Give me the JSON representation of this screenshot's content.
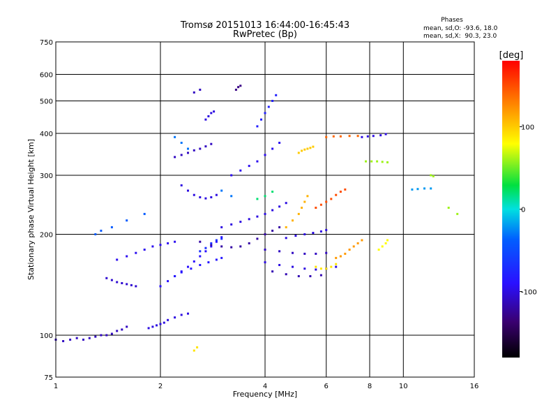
{
  "chart_data": {
    "type": "scatter",
    "title": "Tromsø 20151013 16:44:00-16:45:43",
    "subtitle": "RwPretec (Bp)",
    "xlabel": "Frequency [MHz]",
    "ylabel": "Stationary phase Virtual Height [km]",
    "x_scale": "log",
    "y_scale": "log",
    "xlim": [
      1,
      16
    ],
    "ylim": [
      75,
      750
    ],
    "x_ticks": [
      1,
      2,
      4,
      6,
      8,
      10,
      16
    ],
    "y_ticks": [
      75,
      100,
      200,
      300,
      400,
      500,
      600,
      750
    ],
    "grid": true,
    "phases_box": {
      "title": "Phases",
      "line_o": "mean, sd,O: -93.6, 18.0",
      "line_x": "mean, sd,X:  90.3, 23.0"
    },
    "colorbar": {
      "label": "[deg]",
      "range": [
        -180,
        180
      ],
      "ticks": [
        100,
        0,
        -100
      ]
    },
    "series": [
      {
        "phase": -110,
        "points": [
          [
            1.0,
            97
          ],
          [
            1.05,
            96
          ],
          [
            1.1,
            97
          ],
          [
            1.15,
            98
          ],
          [
            1.2,
            97
          ],
          [
            1.25,
            98
          ],
          [
            1.3,
            99
          ],
          [
            1.35,
            100
          ],
          [
            1.4,
            100
          ],
          [
            1.45,
            101
          ],
          [
            1.5,
            103
          ],
          [
            1.55,
            104
          ],
          [
            1.6,
            106
          ]
        ]
      },
      {
        "phase": -100,
        "points": [
          [
            1.85,
            105
          ],
          [
            1.9,
            106
          ],
          [
            1.95,
            107
          ],
          [
            2.0,
            108
          ],
          [
            2.05,
            109
          ],
          [
            2.1,
            111
          ],
          [
            2.2,
            113
          ],
          [
            2.3,
            115
          ],
          [
            2.4,
            116
          ]
        ]
      },
      {
        "phase": -105,
        "points": [
          [
            1.4,
            148
          ],
          [
            1.45,
            146
          ],
          [
            1.5,
            144
          ],
          [
            1.55,
            143
          ],
          [
            1.6,
            142
          ],
          [
            1.65,
            141
          ],
          [
            1.7,
            140
          ]
        ]
      },
      {
        "phase": -95,
        "points": [
          [
            1.5,
            168
          ],
          [
            1.6,
            172
          ],
          [
            1.7,
            176
          ],
          [
            1.8,
            180
          ],
          [
            1.9,
            184
          ],
          [
            2.0,
            186
          ],
          [
            2.1,
            188
          ],
          [
            2.2,
            190
          ]
        ]
      },
      {
        "phase": -90,
        "points": [
          [
            2.0,
            140
          ],
          [
            2.1,
            145
          ],
          [
            2.2,
            150
          ],
          [
            2.3,
            155
          ],
          [
            2.4,
            160
          ],
          [
            2.5,
            166
          ],
          [
            2.6,
            172
          ],
          [
            2.7,
            178
          ],
          [
            2.8,
            184
          ],
          [
            2.9,
            190
          ],
          [
            3.0,
            196
          ]
        ]
      },
      {
        "phase": -85,
        "points": [
          [
            2.2,
            150
          ],
          [
            2.3,
            154
          ],
          [
            2.45,
            158
          ],
          [
            2.6,
            162
          ],
          [
            2.75,
            165
          ],
          [
            2.9,
            168
          ],
          [
            3.0,
            170
          ]
        ]
      },
      {
        "phase": -120,
        "points": [
          [
            2.6,
            190
          ],
          [
            2.8,
            186
          ],
          [
            3.0,
            184
          ],
          [
            3.2,
            183
          ],
          [
            3.4,
            184
          ],
          [
            3.6,
            188
          ],
          [
            3.8,
            194
          ],
          [
            4.0,
            200
          ],
          [
            4.2,
            205
          ],
          [
            4.4,
            210
          ]
        ]
      },
      {
        "phase": -70,
        "points": [
          [
            2.6,
            178
          ],
          [
            2.7,
            182
          ],
          [
            2.8,
            188
          ],
          [
            2.9,
            192
          ],
          [
            3.0,
            194
          ]
        ]
      },
      {
        "phase": -100,
        "points": [
          [
            3.0,
            210
          ],
          [
            3.2,
            214
          ],
          [
            3.4,
            218
          ],
          [
            3.6,
            222
          ],
          [
            3.8,
            226
          ],
          [
            4.0,
            230
          ],
          [
            4.2,
            236
          ],
          [
            4.4,
            242
          ],
          [
            4.6,
            248
          ]
        ]
      },
      {
        "phase": -110,
        "points": [
          [
            2.2,
            340
          ],
          [
            2.3,
            345
          ],
          [
            2.4,
            350
          ],
          [
            2.5,
            356
          ],
          [
            2.6,
            360
          ],
          [
            2.7,
            366
          ],
          [
            2.8,
            372
          ]
        ]
      },
      {
        "phase": -100,
        "points": [
          [
            2.3,
            280
          ],
          [
            2.4,
            270
          ],
          [
            2.5,
            262
          ],
          [
            2.6,
            258
          ],
          [
            2.7,
            256
          ],
          [
            2.8,
            258
          ],
          [
            2.9,
            262
          ]
        ]
      },
      {
        "phase": -95,
        "points": [
          [
            3.2,
            300
          ],
          [
            3.4,
            310
          ],
          [
            3.6,
            320
          ],
          [
            3.8,
            330
          ],
          [
            4.0,
            345
          ],
          [
            4.2,
            360
          ],
          [
            4.4,
            375
          ]
        ]
      },
      {
        "phase": -80,
        "points": [
          [
            3.8,
            420
          ],
          [
            3.9,
            440
          ],
          [
            4.0,
            460
          ],
          [
            4.1,
            480
          ],
          [
            4.2,
            500
          ],
          [
            4.3,
            520
          ]
        ]
      },
      {
        "phase": -110,
        "points": [
          [
            4.0,
            180
          ],
          [
            4.4,
            178
          ],
          [
            4.8,
            176
          ],
          [
            5.2,
            175
          ],
          [
            5.6,
            175
          ],
          [
            6.0,
            176
          ]
        ]
      },
      {
        "phase": -100,
        "points": [
          [
            4.0,
            165
          ],
          [
            4.4,
            162
          ],
          [
            4.8,
            160
          ],
          [
            5.2,
            158
          ],
          [
            5.6,
            157
          ],
          [
            6.0,
            158
          ],
          [
            6.4,
            160
          ]
        ]
      },
      {
        "phase": -115,
        "points": [
          [
            4.2,
            155
          ],
          [
            4.6,
            152
          ],
          [
            5.0,
            150
          ],
          [
            5.4,
            150
          ],
          [
            5.8,
            151
          ]
        ]
      },
      {
        "phase": -100,
        "points": [
          [
            4.6,
            195
          ],
          [
            4.9,
            198
          ],
          [
            5.2,
            200
          ],
          [
            5.5,
            202
          ],
          [
            5.8,
            204
          ],
          [
            6.0,
            206
          ]
        ]
      },
      {
        "phase": 110,
        "points": [
          [
            4.6,
            210
          ],
          [
            4.8,
            220
          ],
          [
            5.0,
            230
          ],
          [
            5.1,
            240
          ],
          [
            5.2,
            250
          ],
          [
            5.3,
            260
          ]
        ]
      },
      {
        "phase": 100,
        "points": [
          [
            5.0,
            350
          ],
          [
            5.1,
            355
          ],
          [
            5.2,
            358
          ],
          [
            5.3,
            360
          ],
          [
            5.4,
            362
          ],
          [
            5.5,
            365
          ]
        ]
      },
      {
        "phase": 150,
        "points": [
          [
            5.6,
            240
          ],
          [
            5.8,
            245
          ],
          [
            6.0,
            250
          ],
          [
            6.2,
            255
          ],
          [
            6.4,
            262
          ],
          [
            6.6,
            268
          ],
          [
            6.8,
            272
          ]
        ]
      },
      {
        "phase": 90,
        "points": [
          [
            5.6,
            160
          ],
          [
            5.8,
            158
          ],
          [
            6.0,
            158
          ],
          [
            6.2,
            160
          ],
          [
            6.4,
            163
          ]
        ]
      },
      {
        "phase": 120,
        "points": [
          [
            6.4,
            170
          ],
          [
            6.6,
            172
          ],
          [
            6.8,
            175
          ],
          [
            7.0,
            180
          ],
          [
            7.2,
            184
          ],
          [
            7.4,
            188
          ],
          [
            7.6,
            192
          ]
        ]
      },
      {
        "phase": 140,
        "points": [
          [
            6.0,
            390
          ],
          [
            6.3,
            392
          ],
          [
            6.6,
            392
          ],
          [
            7.0,
            393
          ],
          [
            7.4,
            393
          ]
        ]
      },
      {
        "phase": -100,
        "points": [
          [
            7.6,
            390
          ],
          [
            7.9,
            392
          ],
          [
            8.2,
            393
          ],
          [
            8.6,
            395
          ],
          [
            8.9,
            398
          ]
        ]
      },
      {
        "phase": 60,
        "points": [
          [
            7.8,
            330
          ],
          [
            8.1,
            330
          ],
          [
            8.4,
            330
          ],
          [
            8.7,
            329
          ],
          [
            9.0,
            328
          ]
        ]
      },
      {
        "phase": 80,
        "points": [
          [
            8.5,
            180
          ],
          [
            8.7,
            184
          ],
          [
            8.9,
            188
          ],
          [
            9.0,
            192
          ]
        ]
      },
      {
        "phase": -20,
        "points": [
          [
            10.6,
            272
          ],
          [
            11.0,
            273
          ],
          [
            11.5,
            274
          ],
          [
            12.0,
            274
          ]
        ]
      },
      {
        "phase": -130,
        "points": [
          [
            3.3,
            540
          ],
          [
            3.35,
            550
          ],
          [
            3.4,
            555
          ]
        ]
      },
      {
        "phase": -100,
        "points": [
          [
            2.7,
            440
          ],
          [
            2.75,
            450
          ],
          [
            2.8,
            460
          ],
          [
            2.85,
            465
          ]
        ]
      },
      {
        "phase": -110,
        "points": [
          [
            2.5,
            530
          ],
          [
            2.6,
            540
          ]
        ]
      },
      {
        "phase": 90,
        "points": [
          [
            2.5,
            90
          ],
          [
            2.55,
            92
          ]
        ]
      },
      {
        "phase": -40,
        "points": [
          [
            1.3,
            200
          ],
          [
            1.35,
            205
          ],
          [
            1.45,
            210
          ],
          [
            1.6,
            220
          ],
          [
            1.8,
            230
          ]
        ]
      },
      {
        "phase": 60,
        "points": [
          [
            12.0,
            300
          ],
          [
            12.2,
            298
          ],
          [
            13.5,
            240
          ],
          [
            14.3,
            230
          ]
        ]
      },
      {
        "phase": -30,
        "points": [
          [
            2.2,
            390
          ],
          [
            2.3,
            375
          ],
          [
            2.4,
            360
          ],
          [
            3.0,
            270
          ],
          [
            3.2,
            260
          ]
        ]
      },
      {
        "phase": 20,
        "points": [
          [
            3.8,
            255
          ],
          [
            4.0,
            260
          ],
          [
            4.2,
            268
          ]
        ]
      }
    ]
  }
}
